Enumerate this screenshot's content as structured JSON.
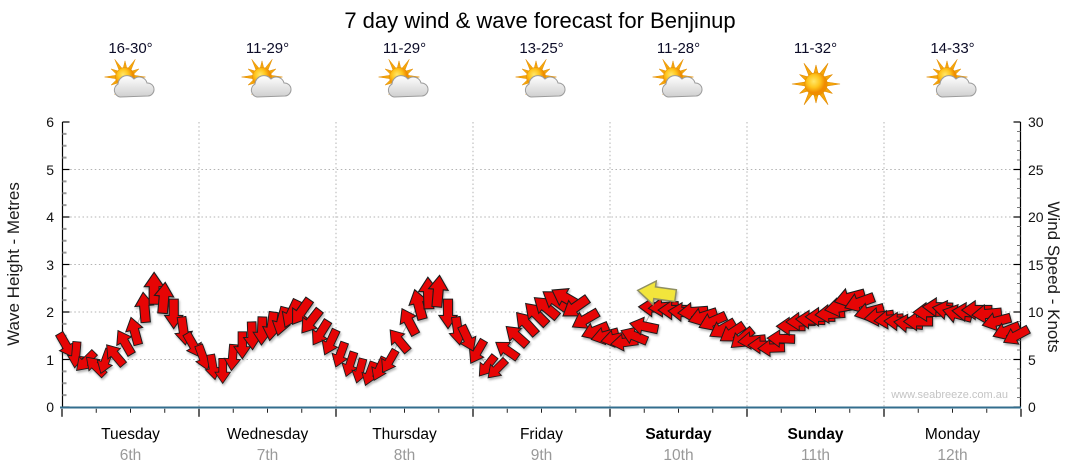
{
  "watermark": "www.seabreeze.com.au",
  "chart_data": {
    "type": "wind_wave_forecast_time_series",
    "title": "7 day wind & wave forecast for Benjinup",
    "left_axis": {
      "label": "Wave Height - Metres",
      "min": 0,
      "max": 6,
      "major_step": 1
    },
    "right_axis": {
      "label": "Wind Speed - Knots",
      "min": 0,
      "max": 30,
      "major_step": 5
    },
    "days": [
      {
        "name": "Tuesday",
        "date": "6th",
        "temp": "16-30°",
        "icon": "partly-cloudy",
        "emphasis": false
      },
      {
        "name": "Wednesday",
        "date": "7th",
        "temp": "11-29°",
        "icon": "partly-cloudy",
        "emphasis": false
      },
      {
        "name": "Thursday",
        "date": "8th",
        "temp": "11-29°",
        "icon": "partly-cloudy",
        "emphasis": false
      },
      {
        "name": "Friday",
        "date": "9th",
        "temp": "13-25°",
        "icon": "partly-cloudy",
        "emphasis": false
      },
      {
        "name": "Saturday",
        "date": "10th",
        "temp": "11-28°",
        "icon": "partly-cloudy",
        "emphasis": true
      },
      {
        "name": "Sunday",
        "date": "11th",
        "temp": "11-32°",
        "icon": "sunny",
        "emphasis": true
      },
      {
        "name": "Monday",
        "date": "12th",
        "temp": "14-33°",
        "icon": "partly-cloudy",
        "emphasis": false
      }
    ],
    "wind_points_knots_dir": [
      [
        6.5,
        150
      ],
      [
        5.5,
        185
      ],
      [
        4.8,
        225
      ],
      [
        4.3,
        315
      ],
      [
        4.8,
        200
      ],
      [
        5.5,
        320
      ],
      [
        6.8,
        330
      ],
      [
        8,
        345
      ],
      [
        10.5,
        355
      ],
      [
        12.5,
        0
      ],
      [
        11.5,
        5
      ],
      [
        9.8,
        180
      ],
      [
        8,
        172
      ],
      [
        6.5,
        150
      ],
      [
        5.2,
        160
      ],
      [
        4.2,
        170
      ],
      [
        3.8,
        180
      ],
      [
        5.2,
        185
      ],
      [
        6.5,
        180
      ],
      [
        7.5,
        178
      ],
      [
        8,
        182
      ],
      [
        8.5,
        188
      ],
      [
        9,
        195
      ],
      [
        9.8,
        205
      ],
      [
        10,
        215
      ],
      [
        9,
        218
      ],
      [
        7.8,
        212
      ],
      [
        6.8,
        205
      ],
      [
        5.5,
        200
      ],
      [
        4.5,
        198
      ],
      [
        3.8,
        195
      ],
      [
        3.5,
        200
      ],
      [
        4,
        205
      ],
      [
        4.8,
        210
      ],
      [
        7,
        320
      ],
      [
        9,
        332
      ],
      [
        10.8,
        345
      ],
      [
        12,
        358
      ],
      [
        12.2,
        5
      ],
      [
        9.8,
        180
      ],
      [
        8,
        172
      ],
      [
        7.2,
        155
      ],
      [
        5.8,
        210
      ],
      [
        4.3,
        218
      ],
      [
        4,
        225
      ],
      [
        6,
        305
      ],
      [
        7.5,
        312
      ],
      [
        8.8,
        318
      ],
      [
        9.8,
        315
      ],
      [
        10.5,
        310
      ],
      [
        11.2,
        305
      ],
      [
        11.5,
        300
      ],
      [
        10.5,
        235
      ],
      [
        9.2,
        240
      ],
      [
        8,
        248
      ],
      [
        7.5,
        255
      ],
      [
        7.2,
        258
      ],
      [
        6.8,
        262
      ],
      [
        7.5,
        292
      ],
      [
        8.5,
        282
      ],
      [
        10.5,
        272
      ],
      [
        10.5,
        266
      ],
      [
        10.2,
        270
      ],
      [
        10,
        274
      ],
      [
        10,
        266
      ],
      [
        9.5,
        252
      ],
      [
        9,
        246
      ],
      [
        8.2,
        240
      ],
      [
        7.8,
        236
      ],
      [
        7.2,
        230
      ],
      [
        7,
        264
      ],
      [
        6.5,
        270
      ],
      [
        6.2,
        268
      ],
      [
        7.2,
        272
      ],
      [
        8.5,
        270
      ],
      [
        9,
        268
      ],
      [
        9.2,
        272
      ],
      [
        9.5,
        270
      ],
      [
        9.8,
        266
      ],
      [
        10.5,
        260
      ],
      [
        11.5,
        255
      ],
      [
        11,
        250
      ],
      [
        10,
        255
      ],
      [
        9.5,
        262
      ],
      [
        9.2,
        265
      ],
      [
        9,
        272
      ],
      [
        8.8,
        276
      ],
      [
        9,
        270
      ],
      [
        10,
        268
      ],
      [
        10.5,
        272
      ],
      [
        10.2,
        280
      ],
      [
        9.8,
        285
      ],
      [
        10,
        275
      ],
      [
        10.2,
        270
      ],
      [
        9.8,
        265
      ],
      [
        9,
        255
      ],
      [
        8,
        248
      ],
      [
        7.5,
        242
      ]
    ],
    "now_marker": {
      "knots": 12,
      "direction_deg": 278,
      "fraction": 0.62
    },
    "colors": {
      "arrow": "#e60505",
      "arrow_outline": "#1c1c1c",
      "now_arrow": "#f2e53c",
      "now_outline": "#8f8f62",
      "baseline": "#336e8e",
      "grid": "#b3b3b3",
      "trace": "#b5b5b5",
      "date_text": "#999999",
      "watermark": "#c4c4c4"
    }
  }
}
